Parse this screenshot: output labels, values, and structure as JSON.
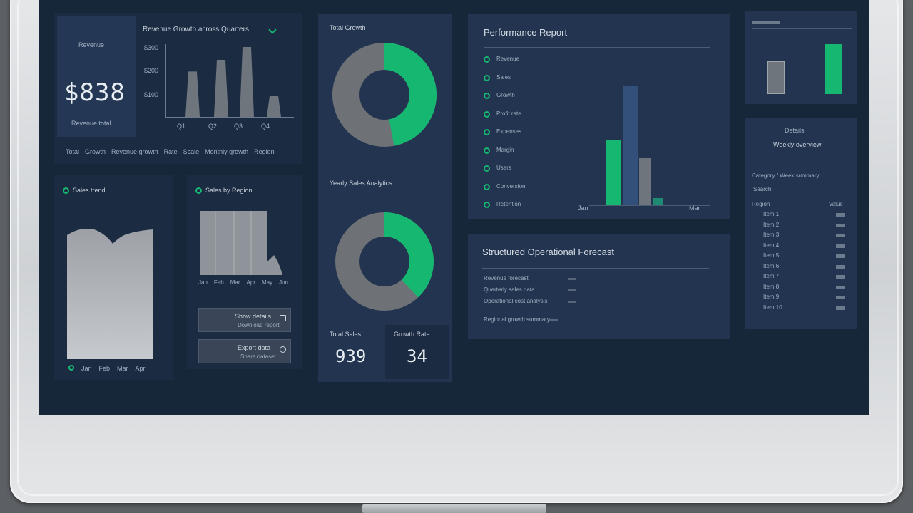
{
  "colors": {
    "accent": "#16b871",
    "bar_gray": "#6f757c",
    "bar_blue": "#33507a"
  },
  "revenue": {
    "label_top": "Revenue",
    "value": "$838",
    "label_bottom": "Revenue total",
    "title": "Revenue Growth across Quarters",
    "y_ticks": [
      "$300",
      "$200",
      "$100"
    ],
    "x_ticks": [
      "Q1",
      "Q2",
      "Q3",
      "Q4"
    ],
    "values": [
      65,
      82,
      100,
      30
    ],
    "footer": [
      "Total",
      "Growth",
      "Revenue growth",
      "Rate",
      "Scale",
      "Monthly growth",
      "Region"
    ]
  },
  "area_panel": {
    "title": "Sales trend",
    "footer": [
      "Jan",
      "Feb",
      "Mar",
      "Apr"
    ]
  },
  "hist_panel": {
    "title": "Sales by Region",
    "x_ticks": [
      "Jan",
      "Feb",
      "Mar",
      "Apr",
      "May",
      "Jun"
    ],
    "btn1": "Show details",
    "btn1_sub": "Download report",
    "btn2": "Export data",
    "btn2_sub": "Share dataset"
  },
  "donut1": {
    "title": "Total Growth",
    "fraction": 0.47
  },
  "donut2": {
    "title": "Yearly Sales Analytics",
    "fraction": 0.38
  },
  "mini_stats": [
    {
      "label": "Total Sales",
      "value": "939"
    },
    {
      "label": "Growth Rate",
      "value": "34"
    }
  ],
  "performance": {
    "title": "Performance Report",
    "items": [
      "Revenue",
      "Sales",
      "Growth",
      "Profit rate",
      "Expenses",
      "Margin",
      "Users",
      "Conversion",
      "Retention"
    ],
    "values": [
      55,
      100,
      39,
      6
    ],
    "x_labels": [
      "Jan",
      "Mar"
    ]
  },
  "summary": {
    "title": "Structured Operational Forecast",
    "rows": [
      "Revenue forecast",
      "Quarterly sales data",
      "Operational cost analysis",
      "Regional growth summary"
    ]
  },
  "mini_chart": {
    "values": [
      45,
      68
    ]
  },
  "table": {
    "title": "Details",
    "subtitle": "Weekly overview",
    "heading": "Category / Week summary",
    "search": "Search",
    "columns": [
      "Region",
      "Value"
    ],
    "rows": [
      "Item 1",
      "Item 2",
      "Item 3",
      "Item 4",
      "Item 5",
      "Item 6",
      "Item 7",
      "Item 8",
      "Item 9",
      "Item 10"
    ]
  }
}
